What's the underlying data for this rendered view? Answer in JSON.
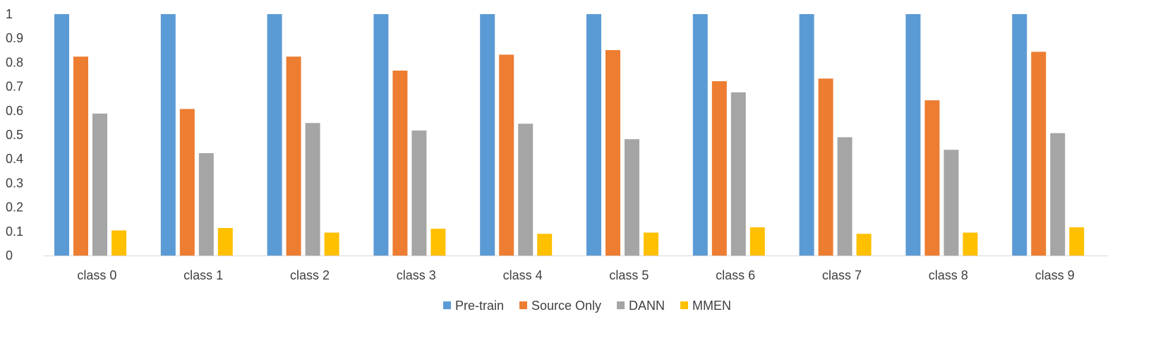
{
  "chart_data": {
    "type": "bar",
    "categories": [
      "class 0",
      "class 1",
      "class 2",
      "class 3",
      "class 4",
      "class 5",
      "class 6",
      "class 7",
      "class 8",
      "class 9"
    ],
    "series": [
      {
        "name": "Pre-train",
        "color": "#5B9BD5",
        "values": [
          1,
          1,
          1,
          1,
          1,
          1,
          1,
          1,
          1,
          1
        ]
      },
      {
        "name": "Source Only",
        "color": "#ED7D31",
        "values": [
          0.824,
          0.607,
          0.824,
          0.766,
          0.832,
          0.851,
          0.722,
          0.733,
          0.643,
          0.844
        ]
      },
      {
        "name": "DANN",
        "color": "#A5A5A5",
        "values": [
          0.588,
          0.424,
          0.549,
          0.518,
          0.546,
          0.482,
          0.676,
          0.49,
          0.438,
          0.507
        ]
      },
      {
        "name": "MMEN",
        "color": "#FFC000",
        "values": [
          0.104,
          0.114,
          0.095,
          0.111,
          0.09,
          0.095,
          0.117,
          0.09,
          0.095,
          0.117
        ]
      }
    ],
    "yticks": [
      "0",
      "0.1",
      "0.2",
      "0.3",
      "0.4",
      "0.5",
      "0.6",
      "0.7",
      "0.8",
      "0.9",
      "1"
    ],
    "ylim": [
      0,
      1
    ],
    "grid": false,
    "legend": "bottom"
  }
}
